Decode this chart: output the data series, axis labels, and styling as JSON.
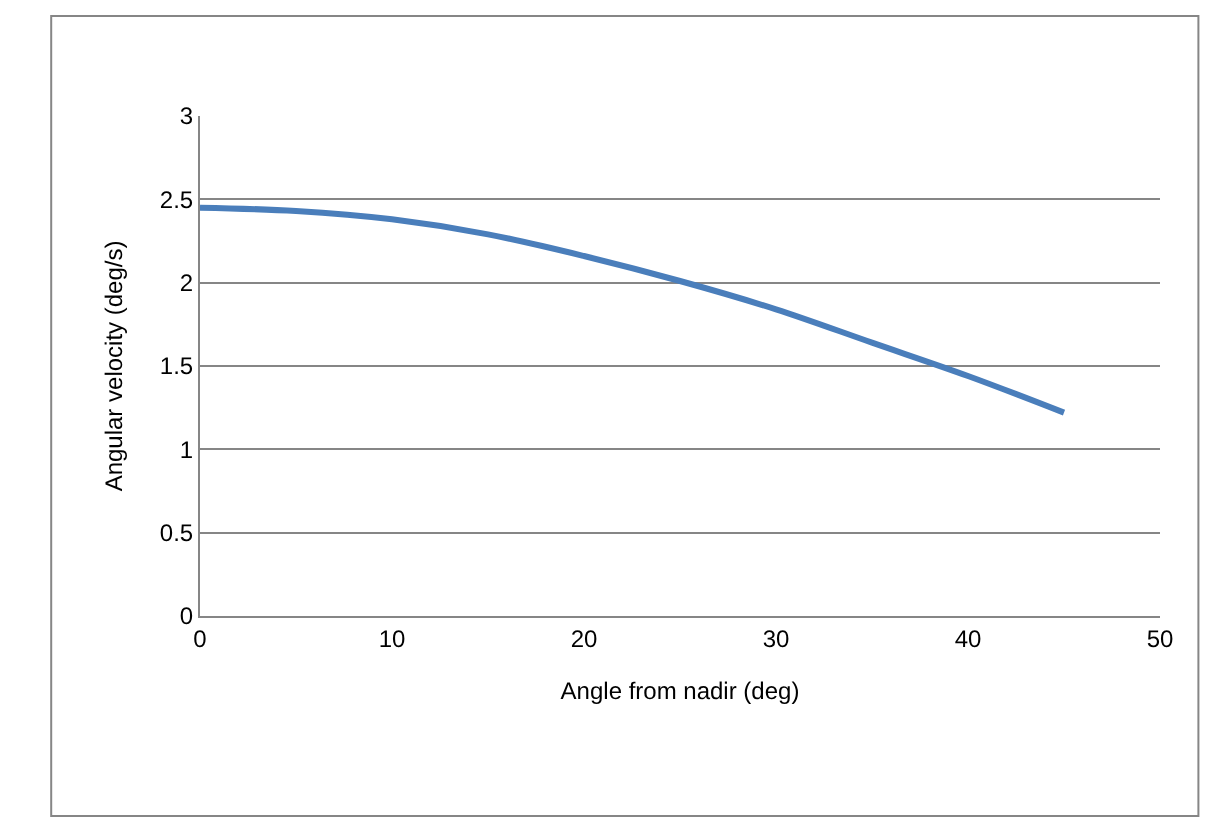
{
  "chart_data": {
    "type": "line",
    "xlabel": "Angle from nadir (deg)",
    "ylabel": "Angular velocity (deg/s)",
    "x": [
      0,
      5,
      10,
      15,
      20,
      25,
      30,
      35,
      40,
      45
    ],
    "series": [
      {
        "color": "#4a7ebb",
        "values": [
          2.45,
          2.43,
          2.38,
          2.29,
          2.16,
          2.01,
          1.84,
          1.64,
          1.44,
          1.22
        ]
      }
    ],
    "xlim": [
      0,
      50
    ],
    "xticks": [
      0,
      10,
      20,
      30,
      40,
      50
    ],
    "ylim": [
      0,
      3
    ],
    "yticks": [
      0,
      0.5,
      1,
      1.5,
      2,
      2.5,
      3
    ],
    "grid": "y",
    "legend": false,
    "marker": "none",
    "line_style": "solid"
  }
}
